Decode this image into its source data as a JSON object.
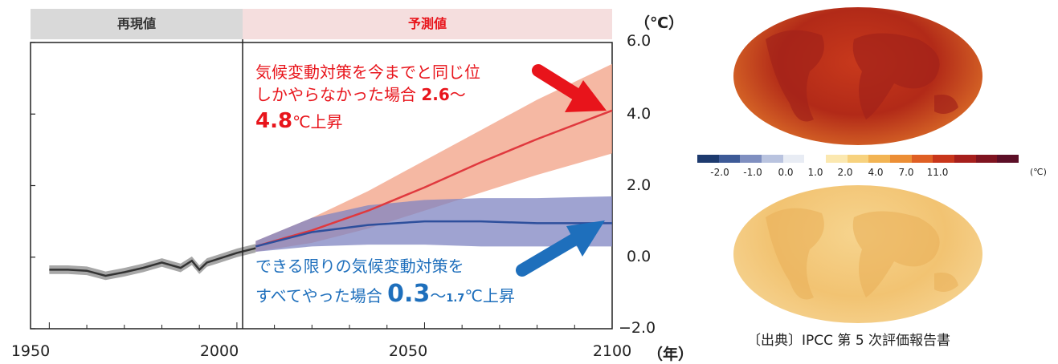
{
  "chart_data": {
    "type": "line",
    "header": {
      "observed": "再現値",
      "projected": "予測値"
    },
    "x_ticks": [
      "1950",
      "2000",
      "2050",
      "2100"
    ],
    "y_ticks": [
      "6.0",
      "4.0",
      "2.0",
      "0.0",
      "−2.0"
    ],
    "y_unit": "（℃）",
    "x_unit": "（年）",
    "xlim": [
      1945,
      2100
    ],
    "ylim": [
      -2,
      6
    ],
    "projection_start": 2005,
    "series": [
      {
        "role": "observed",
        "color": "#333333",
        "band_color": "#8a8a8a",
        "x": [
          1950,
          1955,
          1960,
          1965,
          1970,
          1975,
          1980,
          1985,
          1988,
          1990,
          1992,
          1995,
          2000,
          2005
        ],
        "y": [
          -0.35,
          -0.35,
          -0.38,
          -0.52,
          -0.42,
          -0.3,
          -0.15,
          -0.3,
          -0.1,
          -0.35,
          -0.15,
          -0.05,
          0.12,
          0.25
        ],
        "band": [
          0.12,
          0.12,
          0.12,
          0.12,
          0.12,
          0.12,
          0.12,
          0.12,
          0.12,
          0.12,
          0.12,
          0.12,
          0.12,
          0.12
        ]
      },
      {
        "role": "projected-high",
        "color": "#e0393e",
        "band_color": "#f2a084",
        "x": [
          2005,
          2020,
          2035,
          2050,
          2065,
          2080,
          2100
        ],
        "y": [
          0.3,
          0.75,
          1.3,
          1.95,
          2.65,
          3.3,
          4.1
        ],
        "low": [
          0.15,
          0.4,
          0.8,
          1.3,
          1.8,
          2.3,
          2.9
        ],
        "high": [
          0.45,
          1.1,
          1.85,
          2.7,
          3.55,
          4.4,
          5.4
        ]
      },
      {
        "role": "projected-low",
        "color": "#2e4f9c",
        "band_color": "#7f84c2",
        "x": [
          2005,
          2020,
          2035,
          2050,
          2065,
          2080,
          2100
        ],
        "y": [
          0.3,
          0.7,
          0.9,
          1.0,
          1.0,
          0.95,
          0.95
        ],
        "low": [
          0.15,
          0.3,
          0.35,
          0.35,
          0.3,
          0.3,
          0.3
        ],
        "high": [
          0.45,
          1.1,
          1.45,
          1.6,
          1.65,
          1.65,
          1.7
        ]
      }
    ],
    "annotations": {
      "red": {
        "line1": "気候変動対策を今までと同じ位",
        "line2a": "しかやらなかった場合 ",
        "line2b": "2.6",
        "line2c": "～",
        "line3a": "4.8",
        "line3b": "℃",
        "line3c": "上昇"
      },
      "blue": {
        "line1": "できる限りの気候変動対策を",
        "line2a": "すべてやった場合 ",
        "line2b": "0.3",
        "line2c": "～",
        "line2d": "1.7",
        "line2e": "℃",
        "line2f": "上昇"
      }
    }
  },
  "colorbar": {
    "labels": [
      "-2.0",
      "-1.0",
      "0.0",
      "1.0",
      "2.0",
      "4.0",
      "7.0",
      "11.0"
    ],
    "unit": "(℃)",
    "colors": [
      "#1d3a6e",
      "#3d5a97",
      "#7f8fc0",
      "#b9c3df",
      "#e8ecf4",
      "#ffffff",
      "#fbe8b0",
      "#f7d27e",
      "#f2b453",
      "#ec8e35",
      "#df5f24",
      "#c8361b",
      "#a61f1c",
      "#7f1420",
      "#5c0f27"
    ]
  },
  "source_text": "〔出典〕IPCC 第 5 次評価報告書"
}
